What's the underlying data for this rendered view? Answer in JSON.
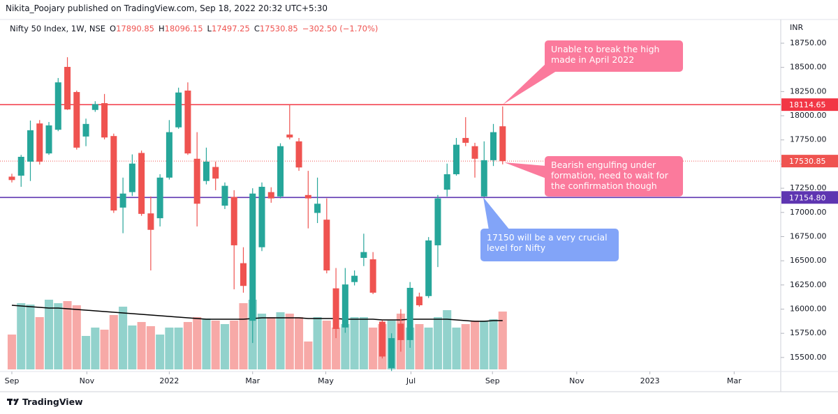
{
  "header": {
    "published": "Nikita_Poojary published on TradingView.com, Sep 18, 2022 20:32 UTC+5:30"
  },
  "legend": {
    "symbol": "Nifty 50 Index, 1W, NSE",
    "ohlc": [
      {
        "key": "O",
        "value": "17890.85"
      },
      {
        "key": "H",
        "value": "18096.15"
      },
      {
        "key": "L",
        "value": "17497.25"
      },
      {
        "key": "C",
        "value": "17530.85"
      }
    ],
    "change": "−302.50 (−1.70%)"
  },
  "footer": {
    "brand": "TradingView"
  },
  "chart_data": {
    "type": "candlestick",
    "y_unit": "INR",
    "up_color": "#26a69a",
    "down_color": "#ef5350",
    "open": [
      17370,
      17380,
      17525,
      17920,
      17610,
      17855,
      18505,
      18245,
      17785,
      18060,
      18130,
      17790,
      17050,
      17210,
      17615,
      16990,
      16940,
      17360,
      17880,
      18260,
      17555,
      17325,
      17470,
      17070,
      17160,
      16475,
      15880,
      16640,
      17210,
      17165,
      17805,
      17735,
      17180,
      16995,
      16925,
      16215,
      15810,
      16280,
      16530,
      16515,
      15870,
      15390,
      15850,
      15680,
      16130,
      16135,
      16660,
      17235,
      17395,
      17770,
      17685,
      17165,
      17540,
      17890.85
    ],
    "high": [
      17400,
      17595,
      17950,
      17955,
      17935,
      18390,
      18605,
      18260,
      17970,
      18150,
      18225,
      17815,
      17360,
      17600,
      17640,
      17165,
      17395,
      17955,
      18290,
      18345,
      17830,
      17670,
      17525,
      17310,
      17230,
      16640,
      17250,
      17310,
      17260,
      17715,
      18114.65,
      17770,
      17430,
      17360,
      17145,
      16425,
      16425,
      16400,
      16780,
      16590,
      15885,
      15750,
      16000,
      16280,
      16170,
      16745,
      17180,
      17505,
      17770,
      17985,
      17720,
      17735,
      17915,
      18096.15
    ],
    "low": [
      17310,
      17265,
      17325,
      17495,
      17595,
      17840,
      18060,
      17650,
      17685,
      18040,
      17755,
      16995,
      16785,
      17170,
      16965,
      16400,
      16855,
      17340,
      17865,
      17595,
      16855,
      17290,
      17230,
      17035,
      16205,
      16170,
      15650,
      16600,
      17100,
      17145,
      17755,
      17430,
      16835,
      16890,
      16370,
      15700,
      15755,
      16245,
      16445,
      16155,
      15490,
      15360,
      15560,
      15600,
      16025,
      16115,
      16435,
      17165,
      17380,
      17685,
      17360,
      17160,
      17480,
      17497.25
    ],
    "close": [
      17335,
      17575,
      17850,
      17525,
      17900,
      18345,
      18065,
      17670,
      17915,
      18120,
      17775,
      17020,
      17195,
      17505,
      16985,
      16820,
      17360,
      17830,
      18240,
      17610,
      17090,
      17525,
      17350,
      17275,
      16660,
      16240,
      17195,
      17265,
      17145,
      17685,
      17775,
      17465,
      17145,
      17090,
      16400,
      15795,
      16255,
      16345,
      16590,
      16170,
      15510,
      15700,
      15680,
      16220,
      16040,
      16710,
      17145,
      17395,
      17700,
      17720,
      17555,
      17540,
      17830,
      17530.85
    ],
    "volume": [
      50,
      95,
      93,
      75,
      100,
      95,
      98,
      92,
      48,
      60,
      57,
      78,
      90,
      63,
      68,
      62,
      50,
      60,
      60,
      68,
      75,
      73,
      70,
      65,
      70,
      95,
      100,
      80,
      75,
      82,
      80,
      75,
      40,
      75,
      70,
      60,
      65,
      75,
      75,
      60,
      65,
      70,
      80,
      60,
      65,
      60,
      75,
      85,
      60,
      65,
      70,
      70,
      72,
      83
    ],
    "volume_ma": [
      92,
      91,
      90,
      89,
      88,
      88,
      87,
      86,
      85,
      84,
      83,
      82,
      81,
      80,
      79,
      78,
      77,
      76,
      75,
      74,
      73,
      72,
      72,
      72,
      72,
      72,
      73,
      74,
      74,
      74,
      74,
      74,
      73,
      73,
      73,
      73,
      72,
      72,
      72,
      72,
      71,
      71,
      71,
      72,
      72,
      72,
      72,
      72,
      71,
      70,
      69,
      69,
      70,
      70
    ],
    "xlim": [
      -1.28,
      83.03
    ],
    "xticks": [
      {
        "value": 0,
        "label": "Sep"
      },
      {
        "value": 8.1,
        "label": "Nov"
      },
      {
        "value": 17,
        "label": "2022"
      },
      {
        "value": 26,
        "label": "Mar"
      },
      {
        "value": 33.9,
        "label": "May"
      },
      {
        "value": 43.1,
        "label": "Jul"
      },
      {
        "value": 51.9,
        "label": "Sep"
      },
      {
        "value": 61,
        "label": "Nov"
      },
      {
        "value": 68.9,
        "label": "2023"
      },
      {
        "value": 78,
        "label": "Mar"
      }
    ],
    "ylim": [
      15355,
      18995
    ],
    "yticks": [
      {
        "value": 18750,
        "label": "18750.00"
      },
      {
        "value": 18500,
        "label": "18500.00"
      },
      {
        "value": 18250,
        "label": "18250.00"
      },
      {
        "value": 18000,
        "label": "18000.00"
      },
      {
        "value": 17750,
        "label": "17750.00"
      },
      {
        "value": 17500,
        "label": "17500.00"
      },
      {
        "value": 17250,
        "label": "17250.00"
      },
      {
        "value": 17000,
        "label": "17000.00"
      },
      {
        "value": 16750,
        "label": "16750.00"
      },
      {
        "value": 16500,
        "label": "16500.00"
      },
      {
        "value": 16250,
        "label": "16250.00"
      },
      {
        "value": 16000,
        "label": "16000.00"
      },
      {
        "value": 15750,
        "label": "15750.00"
      },
      {
        "value": 15500,
        "label": "15500.00"
      }
    ],
    "hlines": [
      {
        "value": 18114.65,
        "label": "18114.65",
        "color": "#f23645",
        "style": "solid"
      },
      {
        "value": 17530.85,
        "label": "17530.85",
        "color": "#ef5350",
        "style": "dotted"
      },
      {
        "value": 17154.8,
        "label": "17154.80",
        "color": "#5e35b1",
        "style": "solid"
      }
    ],
    "grid": false,
    "annotations": [
      {
        "text": "Unable to break the high made in April 2022",
        "color": "#fb7a9c"
      },
      {
        "text": "Bearish engulfing under formation, need to wait for the confirmation though",
        "color": "#fb7a9c"
      },
      {
        "text": "17150 will be a very crucial level for Nifty",
        "color": "#82a4f8"
      }
    ]
  }
}
